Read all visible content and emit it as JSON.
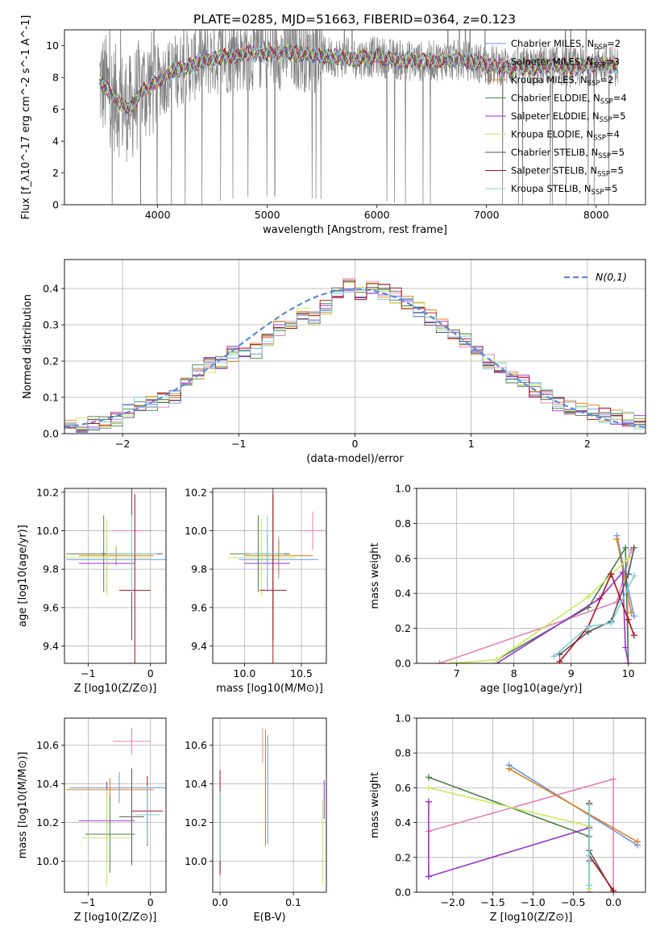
{
  "page_title": "PLATE=0285, MJD=51663, FIBERID=0364, z=0.123",
  "colors": {
    "Chabrier MILES": "#6495ed",
    "Salpeter MILES": "#e680b5",
    "Kroupa MILES": "#e0801a",
    "Chabrier ELODIE": "#4a7f4a",
    "Salpeter ELODIE": "#9932cc",
    "Kroupa ELODIE": "#c8eb5a",
    "Chabrier STELIB": "#555555",
    "Salpeter STELIB": "#b01020",
    "Kroupa STELIB": "#7fd0d8",
    "data": "#808080",
    "gaussian": "#5b8bd9"
  },
  "chart_data": [
    {
      "id": "spectrum",
      "type": "line",
      "xlabel": "wavelength [Angstrom, rest frame]",
      "ylabel": "Flux [f_λ10^-17 erg cm^-2 s^-1 A^-1]",
      "xlim": [
        3150,
        8450
      ],
      "ylim": [
        0,
        11
      ],
      "xticks": [
        4000,
        5000,
        6000,
        7000,
        8000
      ],
      "yticks": [
        0,
        2,
        4,
        6,
        8,
        10
      ],
      "grid": false,
      "legend": "top-right",
      "data_color": "gray",
      "series": [
        {
          "name": "Chabrier MILES, N_SSP=2",
          "label": "Chabrier MILES, N",
          "sub": "SSP",
          "tail": "=2"
        },
        {
          "name": "Salpeter MILES, N_SSP=3",
          "label": "Salpeter MILES, N",
          "sub": "SSP",
          "tail": "=3"
        },
        {
          "name": "Kroupa MILES, N_SSP=2",
          "label": "Kroupa MILES, N",
          "sub": "SSP",
          "tail": "=2"
        },
        {
          "name": "Chabrier ELODIE, N_SSP=4",
          "label": "Chabrier ELODIE, N",
          "sub": "SSP",
          "tail": "=4"
        },
        {
          "name": "Salpeter ELODIE, N_SSP=5",
          "label": "Salpeter ELODIE, N",
          "sub": "SSP",
          "tail": "=5"
        },
        {
          "name": "Kroupa ELODIE, N_SSP=4",
          "label": "Kroupa ELODIE, N",
          "sub": "SSP",
          "tail": "=4"
        },
        {
          "name": "Chabrier STELIB, N_SSP=5",
          "label": "Chabrier STELIB, N",
          "sub": "SSP",
          "tail": "=5"
        },
        {
          "name": "Salpeter STELIB, N_SSP=5",
          "label": "Salpeter STELIB, N",
          "sub": "SSP",
          "tail": "=5"
        },
        {
          "name": "Kroupa STELIB, N_SSP=5",
          "label": "Kroupa STELIB, N",
          "sub": "SSP",
          "tail": "=5"
        }
      ],
      "model_continuum": {
        "x": [
          3470,
          3550,
          3650,
          3750,
          3850,
          3950,
          4050,
          4150,
          4250,
          4350,
          4450,
          4600,
          4800,
          5000,
          5200,
          5400,
          5600,
          5800,
          6000,
          6200,
          6400,
          6600,
          6800,
          7000,
          7200,
          7400,
          7600,
          7800,
          8000,
          8200
        ],
        "y": [
          7.8,
          7.2,
          6.4,
          6.0,
          7.2,
          7.6,
          8.0,
          8.4,
          8.6,
          8.9,
          9.1,
          9.3,
          9.5,
          9.5,
          9.6,
          9.4,
          9.3,
          9.2,
          9.3,
          9.1,
          9.0,
          9.1,
          9.1,
          8.8,
          8.7,
          8.6,
          8.8,
          8.6,
          8.9,
          8.7
        ]
      }
    },
    {
      "id": "residuals",
      "type": "line",
      "xlabel": "(data-model)/error",
      "ylabel": "Normed distribution",
      "xlim": [
        -2.5,
        2.5
      ],
      "ylim": [
        0,
        0.48
      ],
      "xticks": [
        -2,
        -1,
        0,
        1,
        2
      ],
      "yticks": [
        0.0,
        0.1,
        0.2,
        0.3,
        0.4
      ],
      "grid": true,
      "legend": "top-right",
      "legend_label": "N(0,1)",
      "bin_width": 0.1,
      "bin_start": -2.5,
      "histogram": [
        0.02,
        0.025,
        0.03,
        0.03,
        0.04,
        0.06,
        0.08,
        0.085,
        0.095,
        0.1,
        0.14,
        0.17,
        0.19,
        0.2,
        0.22,
        0.23,
        0.23,
        0.26,
        0.29,
        0.31,
        0.33,
        0.32,
        0.35,
        0.38,
        0.41,
        0.39,
        0.4,
        0.39,
        0.38,
        0.36,
        0.34,
        0.32,
        0.3,
        0.28,
        0.26,
        0.24,
        0.2,
        0.18,
        0.16,
        0.14,
        0.12,
        0.1,
        0.08,
        0.075,
        0.07,
        0.06,
        0.05,
        0.045,
        0.04,
        0.035
      ]
    },
    {
      "id": "age_vs_Z",
      "type": "scatter",
      "xlabel": "Z [log10(Z/Z⊙)]",
      "ylabel": "age  [log10(age/yr)]",
      "xlim": [
        -1.38,
        0.25
      ],
      "ylim": [
        9.31,
        10.22
      ],
      "xticks": [
        -1,
        0
      ],
      "yticks": [
        9.4,
        9.6,
        9.8,
        10.0,
        10.2
      ],
      "grid": true,
      "points": [
        {
          "series": 0,
          "x": -0.3,
          "y": 9.85,
          "xerr": 1.05,
          "yerr": 0.1
        },
        {
          "series": 1,
          "x": -0.3,
          "y": 10.0,
          "xerr": 0.32,
          "yerr": 0.18
        },
        {
          "series": 2,
          "x": -0.55,
          "y": 9.87,
          "xerr": 0.6,
          "yerr": 0.05
        },
        {
          "series": 3,
          "x": -0.75,
          "y": 9.88,
          "xerr": 0.6,
          "yerr": 0.2
        },
        {
          "series": 4,
          "x": -0.7,
          "y": 9.83,
          "xerr": 0.45,
          "yerr": 0.15
        },
        {
          "series": 5,
          "x": -0.7,
          "y": 9.86,
          "xerr": 0.7,
          "yerr": 0.2
        },
        {
          "series": 6,
          "x": -0.3,
          "y": 9.88,
          "xerr": 0.5,
          "yerr": 0.45
        },
        {
          "series": 7,
          "x": -0.25,
          "y": 9.69,
          "xerr": 0.25,
          "yerr": 0.5
        },
        {
          "series": 8,
          "x": -0.3,
          "y": 9.88,
          "xerr": 0.4,
          "yerr": 0.2
        }
      ]
    },
    {
      "id": "age_vs_mass",
      "type": "scatter",
      "xlabel": "mass [log10(M/M⊙)]",
      "ylabel": "",
      "xlim": [
        9.72,
        10.72
      ],
      "ylim": [
        9.31,
        10.22
      ],
      "xticks": [
        10.0,
        10.5
      ],
      "yticks": [
        9.4,
        9.6,
        9.8,
        10.0,
        10.2
      ],
      "grid": true,
      "points": [
        {
          "series": 0,
          "x": 10.3,
          "y": 9.85,
          "xerr": 0.35,
          "yerr": 0.1
        },
        {
          "series": 1,
          "x": 10.6,
          "y": 10.0,
          "xerr": 0.1,
          "yerr": 0.1
        },
        {
          "series": 2,
          "x": 10.3,
          "y": 9.87,
          "xerr": 0.3,
          "yerr": 0.1
        },
        {
          "series": 3,
          "x": 10.12,
          "y": 9.88,
          "xerr": 0.25,
          "yerr": 0.2
        },
        {
          "series": 4,
          "x": 10.2,
          "y": 9.83,
          "xerr": 0.2,
          "yerr": 0.15
        },
        {
          "series": 5,
          "x": 10.15,
          "y": 9.86,
          "xerr": 0.3,
          "yerr": 0.2
        },
        {
          "series": 6,
          "x": 10.25,
          "y": 9.88,
          "xerr": 0.15,
          "yerr": 0.45
        },
        {
          "series": 7,
          "x": 10.25,
          "y": 9.69,
          "xerr": 0.12,
          "yerr": 0.5
        },
        {
          "series": 8,
          "x": 10.2,
          "y": 9.88,
          "xerr": 0.15,
          "yerr": 0.2
        }
      ]
    },
    {
      "id": "weight_vs_age",
      "type": "line",
      "xlabel": "age  [log10(age/yr)]",
      "ylabel": "mass weight",
      "xlim": [
        6.3,
        10.3
      ],
      "ylim": [
        0,
        1
      ],
      "xticks": [
        7,
        8,
        9,
        10
      ],
      "yticks": [
        0.0,
        0.2,
        0.4,
        0.6,
        0.8,
        1.0
      ],
      "grid": true,
      "series": [
        {
          "x": [
            9.8,
            10.1
          ],
          "y": [
            0.73,
            0.27
          ]
        },
        {
          "x": [
            6.7,
            9.8,
            10.05
          ],
          "y": [
            0.0,
            0.35,
            0.65
          ]
        },
        {
          "x": [
            9.8,
            10.05
          ],
          "y": [
            0.71,
            0.29
          ]
        },
        {
          "x": [
            7.7,
            9.3,
            9.95,
            10.0
          ],
          "y": [
            0.02,
            0.32,
            0.66,
            0.0
          ]
        },
        {
          "x": [
            7.7,
            9.5,
            9.9,
            9.95,
            10.0
          ],
          "y": [
            0.0,
            0.37,
            0.52,
            0.09,
            0.0
          ]
        },
        {
          "x": [
            6.9,
            7.7,
            9.3,
            10.0
          ],
          "y": [
            0.0,
            0.02,
            0.38,
            0.6
          ]
        },
        {
          "x": [
            8.8,
            9.3,
            9.7,
            10.0,
            10.1
          ],
          "y": [
            0.05,
            0.18,
            0.24,
            0.51,
            0.66
          ]
        },
        {
          "x": [
            8.8,
            9.3,
            9.7,
            10.0,
            10.1
          ],
          "y": [
            0.01,
            0.21,
            0.51,
            0.25,
            0.16
          ]
        },
        {
          "x": [
            8.7,
            9.3,
            9.7,
            10.1
          ],
          "y": [
            0.04,
            0.21,
            0.23,
            0.5
          ]
        }
      ]
    },
    {
      "id": "mass_vs_Z",
      "type": "scatter",
      "xlabel": "Z [log10(Z/Z⊙)]",
      "ylabel": "mass [log10(M/M⊙)]",
      "xlim": [
        -1.38,
        0.25
      ],
      "ylim": [
        9.84,
        10.74
      ],
      "xticks": [
        -1,
        0
      ],
      "yticks": [
        10.0,
        10.2,
        10.4,
        10.6
      ],
      "grid": true,
      "points": [
        {
          "series": 0,
          "x": -0.5,
          "y": 10.38,
          "xerr": 0.8,
          "yerr": 0.08
        },
        {
          "series": 1,
          "x": -0.3,
          "y": 10.62,
          "xerr": 0.3,
          "yerr": 0.07
        },
        {
          "series": 2,
          "x": -0.65,
          "y": 10.37,
          "xerr": 0.7,
          "yerr": 0.06
        },
        {
          "series": 3,
          "x": -0.65,
          "y": 10.14,
          "xerr": 0.4,
          "yerr": 0.2
        },
        {
          "series": 4,
          "x": -0.7,
          "y": 10.21,
          "xerr": 0.45,
          "yerr": 0.2
        },
        {
          "series": 5,
          "x": -0.7,
          "y": 10.12,
          "xerr": 0.4,
          "yerr": 0.25
        },
        {
          "series": 6,
          "x": -0.3,
          "y": 10.23,
          "xerr": 0.2,
          "yerr": 0.25
        },
        {
          "series": 7,
          "x": -0.05,
          "y": 10.26,
          "xerr": 0.25,
          "yerr": 0.18
        },
        {
          "series": 8,
          "x": -0.05,
          "y": 10.24,
          "xerr": 0.2,
          "yerr": 0.15
        }
      ]
    },
    {
      "id": "mass_vs_ebv",
      "type": "scatter",
      "xlabel": "E(B-V)",
      "ylabel": "",
      "xlim": [
        -0.01,
        0.145
      ],
      "ylim": [
        9.84,
        10.74
      ],
      "xticks": [
        0.0,
        0.1
      ],
      "yticks": [
        10.0,
        10.2,
        10.4,
        10.6
      ],
      "grid": true,
      "points": [
        {
          "series": 0,
          "x": 0.065,
          "y": 10.37,
          "xerr": 0.0,
          "yerr": 0.28
        },
        {
          "series": 1,
          "x": 0.058,
          "y": 10.6,
          "xerr": 0.0,
          "yerr": 0.09
        },
        {
          "series": 2,
          "x": 0.062,
          "y": 10.38,
          "xerr": 0.0,
          "yerr": 0.3
        },
        {
          "series": 3,
          "x": 0.0,
          "y": 10.15,
          "xerr": 0.0,
          "yerr": 0.2
        },
        {
          "series": 4,
          "x": 0.142,
          "y": 10.32,
          "xerr": 0.0,
          "yerr": 0.1
        },
        {
          "series": 5,
          "x": 0.14,
          "y": 10.1,
          "xerr": 0.0,
          "yerr": 0.22
        },
        {
          "series": 6,
          "x": 0.0,
          "y": 10.15,
          "xerr": 0.0,
          "yerr": 0.2
        },
        {
          "series": 7,
          "x": 0.0,
          "y": 10.2,
          "xerr": 0.0,
          "yerr": 0.27
        },
        {
          "series": 8,
          "x": 0.0,
          "y": 10.18,
          "xerr": 0.0,
          "yerr": 0.18
        }
      ]
    },
    {
      "id": "weight_vs_Z",
      "type": "line",
      "xlabel": "Z [log10(Z/Z⊙)]",
      "ylabel": "mass weight",
      "xlim": [
        -2.45,
        0.4
      ],
      "ylim": [
        0,
        1
      ],
      "xticks": [
        -2.0,
        -1.5,
        -1.0,
        -0.5,
        0.0
      ],
      "yticks": [
        0.0,
        0.2,
        0.4,
        0.6,
        0.8,
        1.0
      ],
      "grid": true,
      "series": [
        {
          "x": [
            -1.3,
            0.3
          ],
          "y": [
            0.73,
            0.27
          ]
        },
        {
          "x": [
            -2.3,
            0.0,
            0.0
          ],
          "y": [
            0.35,
            0.65,
            0.0
          ]
        },
        {
          "x": [
            -1.3,
            0.3
          ],
          "y": [
            0.71,
            0.29
          ]
        },
        {
          "x": [
            -2.3,
            -0.3,
            -0.3
          ],
          "y": [
            0.66,
            0.32,
            0.0
          ]
        },
        {
          "x": [
            -2.3,
            -2.3,
            -0.3,
            -0.3
          ],
          "y": [
            0.52,
            0.09,
            0.37,
            0.0
          ]
        },
        {
          "x": [
            -2.3,
            -0.3,
            -0.3
          ],
          "y": [
            0.6,
            0.38,
            0.02
          ]
        },
        {
          "x": [
            -0.3,
            -0.3,
            -0.3,
            0.0
          ],
          "y": [
            0.51,
            0.18,
            0.24,
            0.0
          ]
        },
        {
          "x": [
            -0.3,
            -0.3,
            0.0
          ],
          "y": [
            0.51,
            0.21,
            0.01
          ]
        },
        {
          "x": [
            -0.3,
            -0.3,
            -0.3
          ],
          "y": [
            0.21,
            0.04,
            0.5
          ]
        }
      ]
    }
  ]
}
